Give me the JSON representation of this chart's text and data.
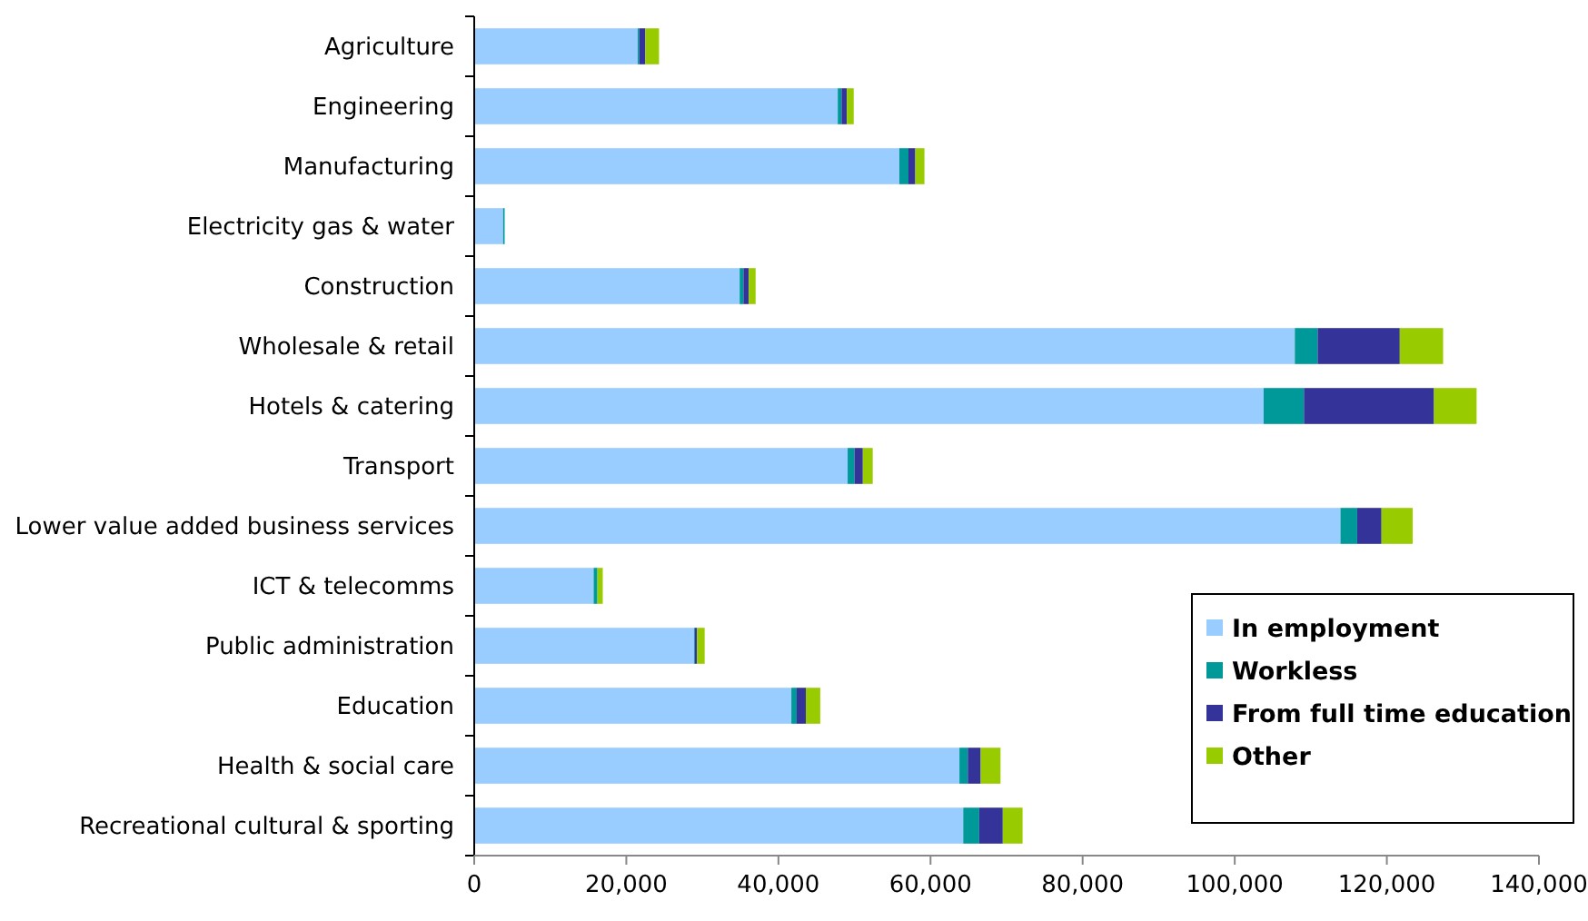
{
  "chart_data": {
    "type": "bar",
    "orientation": "horizontal",
    "stacked": true,
    "categories": [
      "Agriculture",
      "Engineering",
      "Manufacturing",
      "Electricity gas & water",
      "Construction",
      "Wholesale & retail",
      "Hotels & catering",
      "Transport",
      "Lower value added business services",
      "ICT & telecomms",
      "Public administration",
      "Education",
      "Health & social care",
      "Recreational cultural & sporting"
    ],
    "series": [
      {
        "name": "In employment",
        "color": "#99ccff",
        "values": [
          21500,
          47800,
          55900,
          3800,
          34900,
          107900,
          103800,
          49100,
          113900,
          15700,
          28900,
          41700,
          63800,
          64300
        ]
      },
      {
        "name": "Workless",
        "color": "#009999",
        "values": [
          200,
          500,
          1200,
          200,
          500,
          3000,
          5300,
          900,
          2200,
          500,
          100,
          700,
          1100,
          2100
        ]
      },
      {
        "name": "From full time education",
        "color": "#333399",
        "values": [
          800,
          700,
          900,
          0,
          700,
          10800,
          17100,
          1100,
          3200,
          0,
          300,
          1200,
          1700,
          3100
        ]
      },
      {
        "name": "Other",
        "color": "#99cc00",
        "values": [
          1800,
          900,
          1200,
          0,
          900,
          5700,
          5600,
          1300,
          4100,
          700,
          1000,
          1900,
          2600,
          2600
        ]
      }
    ],
    "xlim": [
      0,
      140000
    ],
    "xticks": [
      {
        "value": 0,
        "label": "0"
      },
      {
        "value": 20000,
        "label": "20,000"
      },
      {
        "value": 40000,
        "label": "40,000"
      },
      {
        "value": 60000,
        "label": "60,000"
      },
      {
        "value": 80000,
        "label": "80,000"
      },
      {
        "value": 100000,
        "label": "100,000"
      },
      {
        "value": 120000,
        "label": "120,000"
      },
      {
        "value": 140000,
        "label": "140,000"
      }
    ],
    "grid": false,
    "legend": "bottom right"
  }
}
